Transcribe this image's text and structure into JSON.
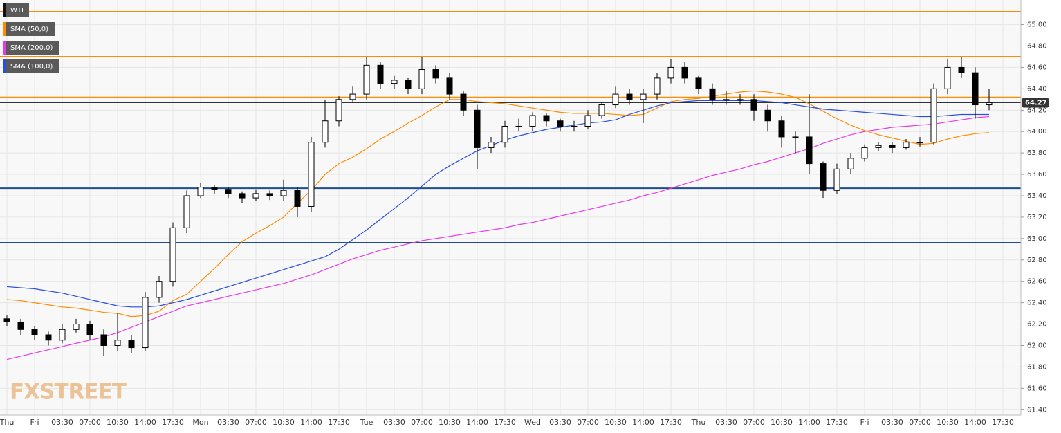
{
  "chart_data": {
    "type": "candlestick",
    "categories": [
      "Thu",
      null,
      "Fri",
      null,
      "03:30",
      null,
      "07:00",
      null,
      "10:30",
      null,
      "14:00",
      null,
      "17:30",
      null,
      "Mon",
      null,
      "03:30",
      null,
      "07:00",
      null,
      "10:30",
      null,
      "14:00",
      null,
      "17:30",
      null,
      "Tue",
      null,
      "03:30",
      null,
      "07:00",
      null,
      "10:30",
      null,
      "14:00",
      null,
      "17:30",
      null,
      "Wed",
      null,
      "03:30",
      null,
      "07:00",
      null,
      "10:30",
      null,
      "14:00",
      null,
      "17:30",
      null,
      "Thu",
      null,
      "03:30",
      null,
      "07:00",
      null,
      "10:30",
      null,
      "14:00",
      null,
      "17:30",
      null,
      "Fri",
      null,
      "03:30",
      null,
      "07:00",
      null,
      "10:30",
      null,
      "14:00",
      null,
      "17:30"
    ],
    "series": [
      {
        "name": "WTI",
        "color": "#000000",
        "open": [
          62.25,
          62.22,
          62.15,
          62.1,
          62.05,
          62.15,
          62.2,
          62.1,
          62.0,
          62.05,
          61.98,
          62.45,
          62.6,
          63.1,
          63.4,
          63.48,
          63.46,
          63.42,
          63.38,
          63.42,
          63.4,
          63.45,
          63.3,
          63.9,
          64.1,
          64.3,
          64.35,
          64.62,
          64.45,
          64.48,
          64.4,
          64.58,
          64.5,
          64.35,
          64.2,
          63.85,
          63.9,
          64.05,
          64.05,
          64.15,
          64.1,
          64.05,
          64.05,
          64.15,
          64.25,
          64.35,
          64.3,
          64.35,
          64.5,
          64.6,
          64.5,
          64.4,
          64.3,
          64.3,
          64.3,
          64.2,
          64.1,
          63.95,
          63.95,
          63.7,
          63.45,
          63.65,
          63.75,
          63.85,
          63.87,
          63.85,
          63.9,
          63.9,
          64.4,
          64.6,
          64.55,
          64.25,
          null
        ],
        "high": [
          62.28,
          62.25,
          62.18,
          62.13,
          62.2,
          62.25,
          62.23,
          62.15,
          62.3,
          62.1,
          62.5,
          62.65,
          63.15,
          63.45,
          63.52,
          63.5,
          63.48,
          63.44,
          63.46,
          63.45,
          63.55,
          63.48,
          63.95,
          64.3,
          64.33,
          64.42,
          64.7,
          64.65,
          64.52,
          64.5,
          64.7,
          64.62,
          64.55,
          64.38,
          64.25,
          63.95,
          64.1,
          64.12,
          64.18,
          64.17,
          64.12,
          64.1,
          64.2,
          64.28,
          64.42,
          64.4,
          64.4,
          64.55,
          64.68,
          64.65,
          64.52,
          64.45,
          64.38,
          64.35,
          64.35,
          64.25,
          64.15,
          64.0,
          64.35,
          63.72,
          63.7,
          63.8,
          63.88,
          63.9,
          63.9,
          63.93,
          63.95,
          64.45,
          64.68,
          64.7,
          64.6,
          64.4,
          null
        ],
        "low": [
          62.18,
          62.1,
          62.05,
          62.0,
          62.02,
          62.12,
          62.05,
          61.9,
          61.95,
          61.93,
          61.95,
          62.4,
          62.55,
          63.05,
          63.38,
          63.42,
          63.38,
          63.33,
          63.35,
          63.36,
          63.35,
          63.2,
          63.25,
          63.85,
          64.05,
          64.28,
          64.3,
          64.4,
          64.4,
          64.35,
          64.35,
          64.45,
          64.3,
          64.15,
          63.65,
          63.8,
          63.85,
          64.0,
          64.0,
          64.05,
          64.0,
          64.0,
          64.02,
          64.12,
          64.22,
          64.25,
          64.08,
          64.3,
          64.45,
          64.45,
          64.35,
          64.25,
          64.25,
          64.25,
          64.1,
          64.0,
          63.85,
          63.8,
          63.6,
          63.38,
          63.42,
          63.6,
          63.72,
          63.82,
          63.8,
          63.83,
          63.86,
          63.88,
          64.35,
          64.5,
          64.12,
          64.2,
          null
        ],
        "close": [
          62.22,
          62.15,
          62.1,
          62.05,
          62.15,
          62.2,
          62.1,
          62.0,
          62.05,
          61.98,
          62.45,
          62.6,
          63.1,
          63.4,
          63.48,
          63.46,
          63.42,
          63.38,
          63.42,
          63.4,
          63.45,
          63.3,
          63.9,
          64.1,
          64.3,
          64.35,
          64.62,
          64.45,
          64.48,
          64.4,
          64.58,
          64.5,
          64.35,
          64.2,
          63.85,
          63.9,
          64.05,
          64.05,
          64.15,
          64.1,
          64.05,
          64.05,
          64.15,
          64.25,
          64.35,
          64.3,
          64.35,
          64.5,
          64.6,
          64.5,
          64.4,
          64.3,
          64.3,
          64.3,
          64.2,
          64.1,
          63.95,
          63.95,
          63.7,
          63.45,
          63.65,
          63.75,
          63.85,
          63.87,
          63.85,
          63.9,
          63.9,
          64.4,
          64.6,
          64.55,
          64.25,
          64.27,
          null
        ]
      },
      {
        "name": "SMA (50,0)",
        "color": "#ff8c00",
        "type": "line",
        "values": [
          62.43,
          62.42,
          62.4,
          62.38,
          62.36,
          62.35,
          62.33,
          62.31,
          62.3,
          62.27,
          62.28,
          62.32,
          62.42,
          62.48,
          62.6,
          62.72,
          62.85,
          62.97,
          63.05,
          63.12,
          63.2,
          63.33,
          63.45,
          63.6,
          63.7,
          63.76,
          63.84,
          63.93,
          64.0,
          64.08,
          64.15,
          64.23,
          64.3,
          64.3,
          64.28,
          64.27,
          64.26,
          64.24,
          64.22,
          64.2,
          64.18,
          64.17,
          64.17,
          64.17,
          64.16,
          64.15,
          64.16,
          64.22,
          64.28,
          64.3,
          64.31,
          64.33,
          64.35,
          64.37,
          64.38,
          64.37,
          64.35,
          64.32,
          64.26,
          64.19,
          64.12,
          64.06,
          64.01,
          63.97,
          63.94,
          63.91,
          63.88,
          63.89,
          63.93,
          63.96,
          63.98,
          63.99,
          null
        ]
      },
      {
        "name": "SMA (200,0)",
        "color": "#e83be8",
        "type": "line",
        "values": [
          61.87,
          61.9,
          61.93,
          61.96,
          61.99,
          62.02,
          62.05,
          62.08,
          62.12,
          62.17,
          62.22,
          62.27,
          62.32,
          62.37,
          62.4,
          62.43,
          62.46,
          62.49,
          62.52,
          62.55,
          62.58,
          62.62,
          62.66,
          62.71,
          62.76,
          62.81,
          62.85,
          62.89,
          62.92,
          62.95,
          62.98,
          63.0,
          63.02,
          63.04,
          63.06,
          63.08,
          63.1,
          63.13,
          63.15,
          63.18,
          63.21,
          63.24,
          63.27,
          63.3,
          63.33,
          63.36,
          63.4,
          63.43,
          63.47,
          63.51,
          63.55,
          63.59,
          63.62,
          63.65,
          63.69,
          63.72,
          63.76,
          63.8,
          63.84,
          63.89,
          63.93,
          63.97,
          64.0,
          64.02,
          64.04,
          64.05,
          64.06,
          64.07,
          64.09,
          64.11,
          64.13,
          64.14,
          null
        ]
      },
      {
        "name": "SMA (100,0)",
        "color": "#2a4ee0",
        "type": "line",
        "values": [
          62.55,
          62.54,
          62.53,
          62.51,
          62.49,
          62.46,
          62.43,
          62.4,
          62.37,
          62.36,
          62.36,
          62.37,
          62.4,
          62.43,
          62.47,
          62.51,
          62.55,
          62.59,
          62.63,
          62.67,
          62.71,
          62.75,
          62.79,
          62.83,
          62.9,
          62.99,
          63.08,
          63.18,
          63.28,
          63.38,
          63.49,
          63.6,
          63.68,
          63.75,
          63.82,
          63.87,
          63.92,
          63.96,
          63.99,
          64.02,
          64.04,
          64.06,
          64.08,
          64.09,
          64.11,
          64.16,
          64.2,
          64.24,
          64.27,
          64.28,
          64.29,
          64.29,
          64.29,
          64.29,
          64.29,
          64.28,
          64.27,
          64.25,
          64.23,
          64.21,
          64.2,
          64.19,
          64.18,
          64.17,
          64.16,
          64.15,
          64.14,
          64.14,
          64.15,
          64.16,
          64.16,
          64.16,
          null
        ]
      }
    ],
    "levels": [
      {
        "value": 65.12,
        "color": "#ff8c00"
      },
      {
        "value": 64.7,
        "color": "#ff8c00"
      },
      {
        "value": 64.32,
        "color": "#ff8c00"
      },
      {
        "value": 63.47,
        "color": "#1f4e8c"
      },
      {
        "value": 62.96,
        "color": "#1f4e8c"
      }
    ],
    "last_price": 64.27,
    "ylim": [
      61.35,
      65.23
    ],
    "yticks": [
      {
        "value": 61.4,
        "label": "61.40"
      },
      {
        "value": 61.6,
        "label": "61.60"
      },
      {
        "value": 61.8,
        "label": "61.80"
      },
      {
        "value": 62,
        "label": "62.00"
      },
      {
        "value": 62.2,
        "label": "62.20"
      },
      {
        "value": 62.4,
        "label": "62.40"
      },
      {
        "value": 62.6,
        "label": "62.60"
      },
      {
        "value": 62.8,
        "label": "62.80"
      },
      {
        "value": 63,
        "label": "63.00"
      },
      {
        "value": 63.2,
        "label": "63.20"
      },
      {
        "value": 63.4,
        "label": "63.40"
      },
      {
        "value": 63.6,
        "label": "63.60"
      },
      {
        "value": 63.8,
        "label": "63.80"
      },
      {
        "value": 64,
        "label": "64.00"
      },
      {
        "value": 64.2,
        "label": "64.20"
      },
      {
        "value": 64.4,
        "label": "64.40"
      },
      {
        "value": 64.6,
        "label": "64.60"
      },
      {
        "value": 64.8,
        "label": "64.80"
      },
      {
        "value": 65,
        "label": "65.00"
      }
    ],
    "grid": true,
    "legend": "top-left",
    "watermark": "FXSTREET"
  }
}
